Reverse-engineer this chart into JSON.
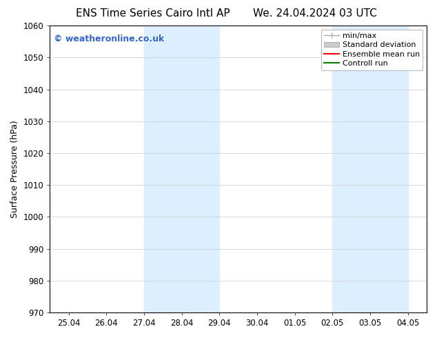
{
  "title_left": "ENS Time Series Cairo Intl AP",
  "title_right": "We. 24.04.2024 03 UTC",
  "ylabel": "Surface Pressure (hPa)",
  "ylim": [
    970,
    1060
  ],
  "yticks": [
    970,
    980,
    990,
    1000,
    1010,
    1020,
    1030,
    1040,
    1050,
    1060
  ],
  "xlabel_ticks": [
    "25.04",
    "26.04",
    "27.04",
    "28.04",
    "29.04",
    "30.04",
    "01.05",
    "02.05",
    "03.05",
    "04.05"
  ],
  "watermark": "© weatheronline.co.uk",
  "watermark_color": "#3366cc",
  "bg_color": "#ffffff",
  "plot_bg_color": "#ffffff",
  "shaded_regions": [
    {
      "xstart": 2,
      "xend": 4,
      "color": "#ddeeff"
    },
    {
      "xstart": 7,
      "xend": 9,
      "color": "#ddeeff"
    }
  ],
  "legend_items": [
    {
      "label": "min/max",
      "color": "#aaaaaa",
      "type": "minmax"
    },
    {
      "label": "Standard deviation",
      "color": "#cccccc",
      "type": "stddev"
    },
    {
      "label": "Ensemble mean run",
      "color": "#ff0000",
      "type": "line"
    },
    {
      "label": "Controll run",
      "color": "#008000",
      "type": "line"
    }
  ],
  "title_fontsize": 11,
  "axis_label_fontsize": 9,
  "tick_fontsize": 8.5,
  "watermark_fontsize": 9,
  "legend_fontsize": 8,
  "grid_color": "#cccccc",
  "spine_color": "#000000"
}
